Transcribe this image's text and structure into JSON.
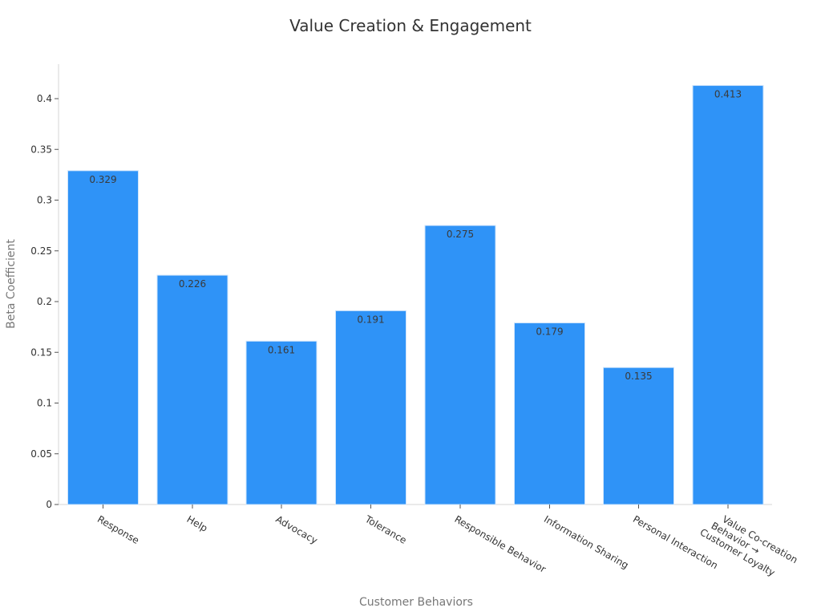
{
  "chart_data": {
    "type": "bar",
    "title": "Value Creation & Engagement",
    "xlabel": "Customer Behaviors",
    "ylabel": "Beta Coefficient",
    "categories": [
      [
        "Response"
      ],
      [
        "Help"
      ],
      [
        "Advocacy"
      ],
      [
        "Tolerance"
      ],
      [
        "Responsible Behavior"
      ],
      [
        "Information Sharing"
      ],
      [
        "Personal Interaction"
      ],
      [
        "Value Co-creation",
        "Behavior →",
        "Customer Loyalty"
      ]
    ],
    "values": [
      0.329,
      0.226,
      0.161,
      0.191,
      0.275,
      0.179,
      0.135,
      0.413
    ],
    "ylim": [
      0,
      0.45
    ],
    "yticks": [
      0,
      0.05,
      0.1,
      0.15,
      0.2,
      0.25,
      0.3,
      0.35,
      0.4
    ],
    "grid": false,
    "legend": "none",
    "bar_color": "#2f93f7",
    "bar_edge_color": "#cfe4fb"
  }
}
